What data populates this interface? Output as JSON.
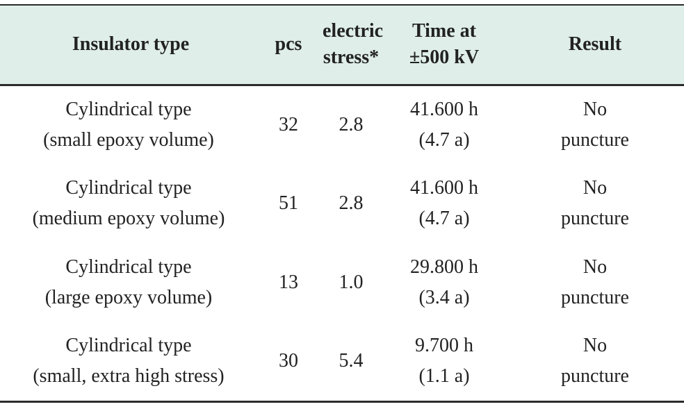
{
  "table": {
    "headers": [
      {
        "lines": [
          "Insulator type"
        ]
      },
      {
        "lines": [
          "pcs"
        ]
      },
      {
        "lines": [
          "electric",
          "stress*"
        ]
      },
      {
        "lines": [
          "Time at",
          "±500 kV"
        ]
      },
      {
        "lines": [
          "Result"
        ]
      }
    ],
    "rows": [
      {
        "type": [
          "Cylindrical type",
          "(small epoxy volume)"
        ],
        "pcs": "32",
        "stress": "2.8",
        "time": [
          "41.600 h",
          "(4.7 a)"
        ],
        "result": [
          "No",
          "puncture"
        ]
      },
      {
        "type": [
          "Cylindrical type",
          "(medium epoxy volume)"
        ],
        "pcs": "51",
        "stress": "2.8",
        "time": [
          "41.600 h",
          "(4.7 a)"
        ],
        "result": [
          "No",
          "puncture"
        ]
      },
      {
        "type": [
          "Cylindrical type",
          "(large epoxy volume)"
        ],
        "pcs": "13",
        "stress": "1.0",
        "time": [
          "29.800 h",
          "(3.4 a)"
        ],
        "result": [
          "No",
          "puncture"
        ]
      },
      {
        "type": [
          "Cylindrical type",
          "(small, extra high stress)"
        ],
        "pcs": "30",
        "stress": "5.4",
        "time": [
          "9.700 h",
          "(1.1 a)"
        ],
        "result": [
          "No",
          "puncture"
        ]
      }
    ]
  },
  "colors": {
    "header_background": "#dfeee9",
    "rule": "#2b2b2b",
    "text": "#222222"
  }
}
